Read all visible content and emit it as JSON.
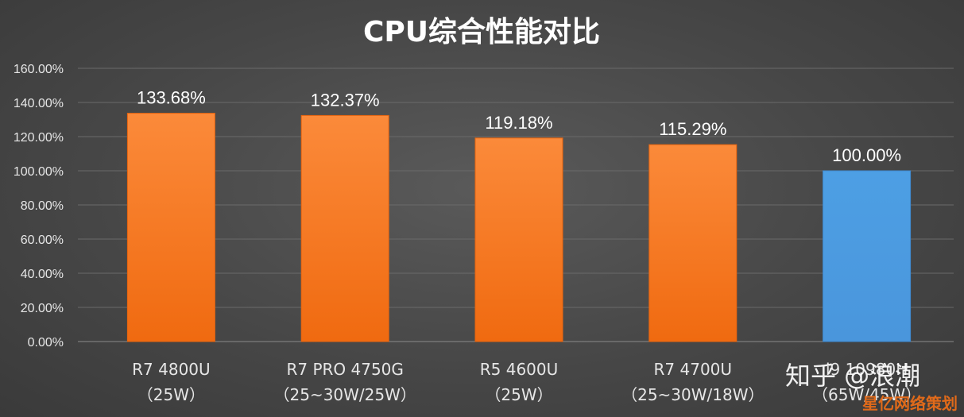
{
  "chart_data": {
    "type": "bar",
    "title": "CPU综合性能对比",
    "categories": [
      [
        "R7 4800U",
        "（25W）"
      ],
      [
        "R7 PRO 4750G",
        "（25~30W/25W）"
      ],
      [
        "R5 4600U",
        "（25W）"
      ],
      [
        "R7 4700U",
        "（25~30W/18W）"
      ],
      [
        "i9 10980H",
        "（65W/45W）"
      ]
    ],
    "values": [
      133.68,
      132.37,
      119.18,
      115.29,
      100.0
    ],
    "data_labels": [
      "133.68%",
      "132.37%",
      "119.18%",
      "115.29%",
      "100.00%"
    ],
    "bar_colors": [
      "#f57418",
      "#f57418",
      "#f57418",
      "#f57418",
      "#4a9ae0"
    ],
    "ylim": [
      0,
      160
    ],
    "yticks": [
      "0.00%",
      "20.00%",
      "40.00%",
      "60.00%",
      "80.00%",
      "100.00%",
      "120.00%",
      "140.00%",
      "160.00%"
    ],
    "grid": true,
    "xlabel": "",
    "ylabel": ""
  },
  "watermarks": {
    "main": "知乎 @浪潮",
    "corner": "星亿网络策划"
  },
  "colors": {
    "accent_orange": "#f57418",
    "accent_blue": "#4a9ae0",
    "gridline": "#6a6a6a"
  }
}
